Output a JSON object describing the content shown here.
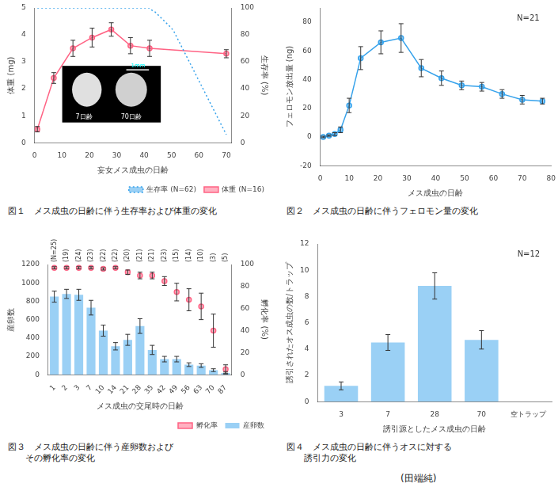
{
  "chart_data": [
    {
      "type": "line",
      "title": "図１　メス成虫の日齢に伴う生存率および体重の変化",
      "xlabel": "妄女メス成虫の日齢",
      "ylabel": "体重 (mg)",
      "y2label": "生存率 (%)",
      "series": [
        {
          "name": "生存率 (N=62)",
          "axis": "y2",
          "line_style": "dotted",
          "marker": "none",
          "x": [
            1,
            2,
            3,
            4,
            5,
            6,
            7,
            8,
            9,
            10,
            11,
            12,
            13,
            14,
            15,
            16,
            17,
            18,
            19,
            20,
            21,
            22,
            23,
            24,
            25,
            26,
            27,
            28,
            29,
            30,
            31,
            32,
            33,
            34,
            35,
            36,
            37,
            38,
            39,
            40,
            41,
            42,
            43,
            44,
            45,
            46,
            47,
            48,
            49,
            50,
            51,
            52,
            53,
            54,
            55,
            56,
            57,
            58,
            59,
            60,
            61,
            62,
            63,
            64,
            65,
            66,
            67,
            68,
            69,
            70
          ],
          "values": [
            100,
            100,
            100,
            100,
            100,
            100,
            100,
            100,
            100,
            100,
            100,
            100,
            100,
            100,
            100,
            100,
            100,
            100,
            100,
            100,
            100,
            100,
            100,
            100,
            100,
            100,
            100,
            100,
            100,
            100,
            100,
            100,
            100,
            100,
            100,
            100,
            100,
            100,
            100,
            100,
            100,
            100,
            98,
            97,
            95,
            93,
            91,
            89,
            87,
            85,
            82,
            78,
            74,
            70,
            66,
            62,
            58,
            54,
            50,
            46,
            42,
            38,
            34,
            30,
            26,
            22,
            18,
            14,
            10,
            6
          ]
        },
        {
          "name": "体重 (N=16)",
          "line_style": "solid",
          "marker": "circle",
          "x": [
            1,
            7,
            14,
            21,
            28,
            35,
            42,
            70
          ],
          "values": [
            0.5,
            2.4,
            3.5,
            3.9,
            4.2,
            3.6,
            3.5,
            3.3
          ],
          "errors": [
            0.1,
            0.2,
            0.3,
            0.35,
            0.25,
            0.3,
            0.3,
            0.15
          ]
        }
      ],
      "xlim": [
        0,
        72
      ],
      "xticks": [
        0,
        10,
        20,
        30,
        40,
        50,
        60,
        70
      ],
      "ylim": [
        0,
        5
      ],
      "yticks": [
        0,
        1,
        2,
        3,
        4,
        5
      ],
      "y2lim": [
        0,
        100
      ],
      "y2ticks": [
        0,
        20,
        40,
        60,
        80,
        100
      ],
      "legend": "lower right",
      "grid": false,
      "annotations": [
        "7日齢",
        "70日齢",
        "1mm"
      ]
    },
    {
      "type": "line",
      "title": "図２　メス成虫の日齢に伴うフェロモン量の変化",
      "xlabel": "メス成虫の日齢",
      "ylabel": "フェロモン放出量 (ng)",
      "x": [
        1,
        3,
        5,
        7,
        10,
        14,
        21,
        28,
        35,
        42,
        49,
        56,
        63,
        70,
        77
      ],
      "values": [
        0,
        1,
        2,
        5,
        22,
        55,
        66,
        69,
        48,
        41,
        36,
        35,
        30,
        26,
        25
      ],
      "errors": [
        0.5,
        0.5,
        1,
        2,
        5,
        8,
        8,
        10,
        6,
        5,
        3,
        3,
        3,
        3,
        2
      ],
      "line_style": "solid",
      "marker": "circle",
      "xlim": [
        0,
        80
      ],
      "xticks": [
        0,
        10,
        20,
        30,
        40,
        50,
        60,
        70,
        80
      ],
      "ylim": [
        -20,
        90
      ],
      "yticks": [
        -20,
        0,
        20,
        40,
        60,
        80
      ],
      "grid": false,
      "annotation": "N=21"
    },
    {
      "type": "bar",
      "title": "図３　メス成虫の日齢に伴う産卵数および\n　　その孵化率の変化",
      "xlabel": "メス成虫の交尾時の日齢",
      "ylabel": "産卵数",
      "y2label": "孵化率 (%)",
      "categories": [
        "1",
        "2",
        "3",
        "7",
        "10",
        "14",
        "21",
        "28",
        "35",
        "42",
        "49",
        "56",
        "63",
        "70",
        "87"
      ],
      "n_labels": [
        "(N=25)",
        "(19)",
        "(24)",
        "(23)",
        "(22)",
        "(22)",
        "(20)",
        "(21)",
        "(21)",
        "(23)",
        "(15)",
        "(14)",
        "(10)",
        "(3)",
        "(5)"
      ],
      "series": [
        {
          "name": "産卵数",
          "values": [
            850,
            880,
            870,
            730,
            480,
            310,
            380,
            530,
            270,
            170,
            170,
            110,
            100,
            50,
            20
          ],
          "errors": [
            60,
            50,
            60,
            80,
            60,
            40,
            60,
            80,
            50,
            30,
            30,
            20,
            20,
            15,
            10
          ]
        },
        {
          "name": "孵化率",
          "type": "scatter",
          "axis": "y2",
          "marker": "circle",
          "values": [
            97,
            97,
            97,
            97,
            96,
            97,
            93,
            90,
            90,
            85,
            75,
            68,
            62,
            40,
            5
          ],
          "errors": [
            1,
            1,
            1,
            1,
            1,
            1,
            2,
            3,
            3,
            4,
            8,
            10,
            12,
            15,
            4
          ]
        }
      ],
      "ylim": [
        0,
        1200
      ],
      "yticks": [
        0,
        200,
        400,
        600,
        800,
        1000,
        1200
      ],
      "y2lim": [
        0,
        100
      ],
      "y2ticks": [
        0,
        20,
        40,
        60,
        80,
        100
      ],
      "legend": "lower right",
      "grid": false
    },
    {
      "type": "bar",
      "title": "図４　メス成虫の日齢に伴うオスに対する\n　　誘引力の変化",
      "xlabel": "誘引源としたメス成虫の日齢",
      "ylabel": "誘引されたオス成虫の数/トラップ",
      "categories": [
        "3",
        "7",
        "28",
        "70",
        "空トラップ"
      ],
      "values": [
        1.2,
        4.5,
        8.8,
        4.7,
        0
      ],
      "errors": [
        0.3,
        0.6,
        1.0,
        0.7,
        0
      ],
      "ylim": [
        0,
        12
      ],
      "yticks": [
        0,
        2,
        4,
        6,
        8,
        10,
        12
      ],
      "grid": false,
      "annotation": "N=12"
    }
  ],
  "annotations": [
    "(田端純)"
  ]
}
